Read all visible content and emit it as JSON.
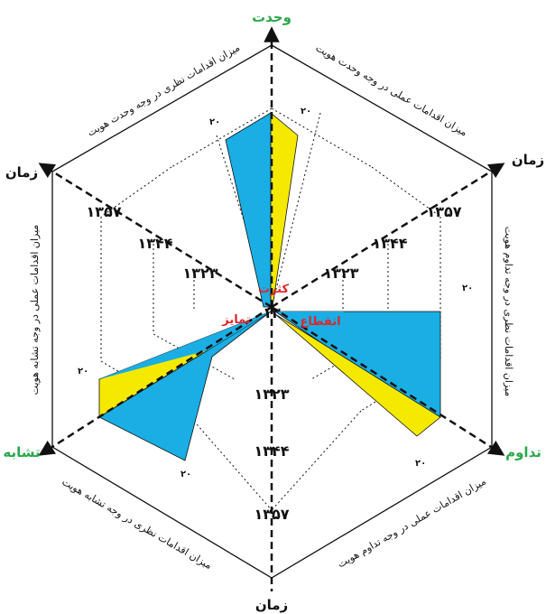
{
  "colors": {
    "practical": "#1aaee4",
    "theoretical": "#f5e900",
    "green_label": "#2aa84a",
    "red_label": "#e0262b",
    "line": "#111111"
  },
  "corners": {
    "top": "وحدت",
    "upper_right": "زمان",
    "lower_right": "تداوم",
    "bottom": "زمان",
    "lower_left": "تشابه",
    "upper_left": "زمان"
  },
  "center_labels": {
    "up": "کثرت",
    "right": "انقطاع",
    "left": "تمایز",
    "center_number": "۱۳"
  },
  "years": {
    "y1": "۱۳۲۳",
    "y2": "۱۳۴۴",
    "y3": "۱۳۵۷"
  },
  "side_labels": {
    "top_left": "میزان اقدامات نظری در وجه وحدت هویت",
    "top_right": "میزان اقدامات عملی در وجه وحدت هویت",
    "right": "میزان اقدامات نظری در وجه تداوم هویت",
    "bottom_right": "میزان اقدامات عملی در وجه تداوم هویت",
    "bottom_left": "میزان اقدامات نظری در وجه تشابه هویت",
    "left": "میزان اقدامات عملی در وجه تشابه هویت"
  },
  "tick_marks": {
    "mark": "۲۰"
  }
}
